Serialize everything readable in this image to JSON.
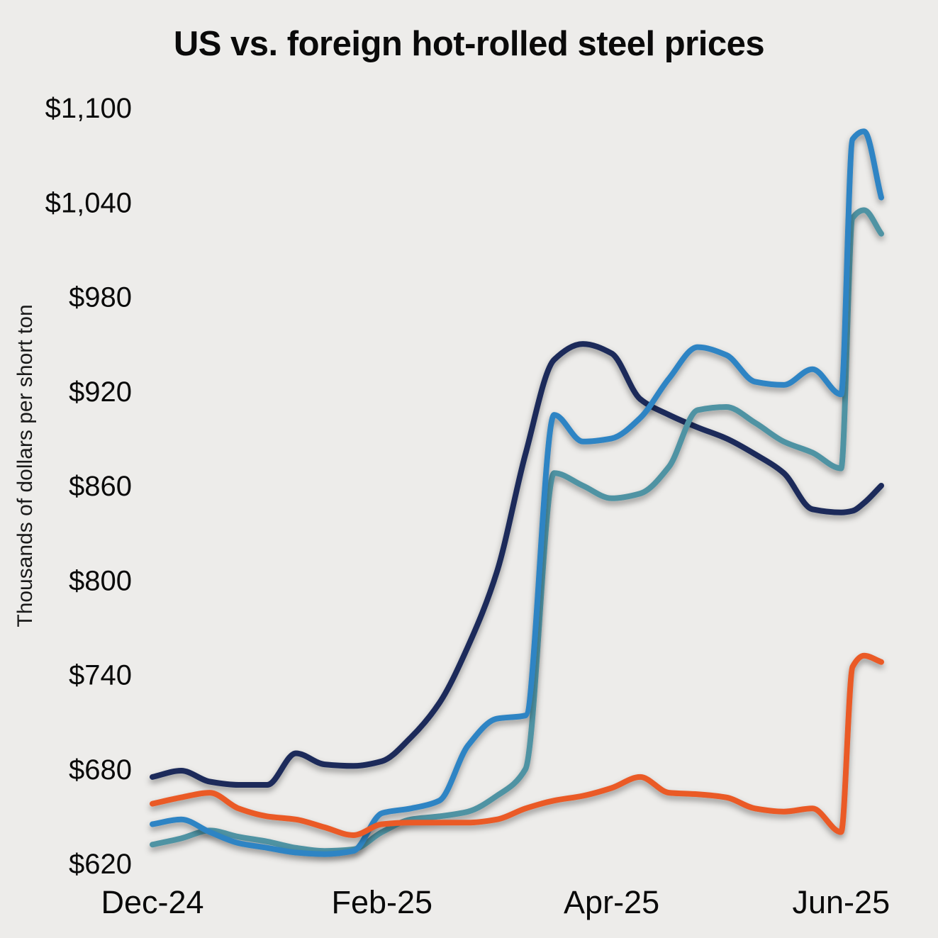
{
  "chart_data": {
    "type": "line",
    "title": "US vs. foreign hot-rolled steel prices",
    "ylabel": "Thousands of dollars per short ton",
    "xlabel": "",
    "background_color": "#edecea",
    "grid": false,
    "legend": "none",
    "ylim": [
      620,
      1100
    ],
    "xlim": [
      0,
      6.35
    ],
    "y_ticks": [
      620,
      680,
      740,
      800,
      860,
      920,
      980,
      1040,
      1100
    ],
    "y_tick_prefix": "$",
    "x_ticks": [
      {
        "label": "Dec-24",
        "x": 0
      },
      {
        "label": "Feb-25",
        "x": 2
      },
      {
        "label": "Apr-25",
        "x": 4
      },
      {
        "label": "Jun-25",
        "x": 6
      }
    ],
    "x": [
      0,
      0.25,
      0.5,
      0.75,
      1,
      1.25,
      1.5,
      1.75,
      2,
      2.25,
      2.5,
      2.75,
      3,
      3.25,
      3.5,
      3.75,
      4,
      4.25,
      4.5,
      4.75,
      5,
      5.25,
      5.5,
      5.75,
      6,
      6.1,
      6.2,
      6.35
    ],
    "series": [
      {
        "name": "navy-line",
        "color": "#1a2a5a",
        "values": [
          675,
          679,
          672,
          670,
          670,
          690,
          683,
          682,
          685,
          700,
          722,
          758,
          805,
          880,
          940,
          950,
          944,
          915,
          905,
          897,
          890,
          880,
          868,
          845,
          843,
          844,
          849,
          860
        ]
      },
      {
        "name": "teal-line",
        "color": "#4f93a3",
        "values": [
          632,
          636,
          641,
          637,
          634,
          630,
          628,
          629,
          640,
          648,
          650,
          653,
          663,
          680,
          868,
          860,
          852,
          855,
          872,
          908,
          910,
          900,
          888,
          881,
          871,
          1030,
          1035,
          1020
        ]
      },
      {
        "name": "blue-line",
        "color": "#2e84c4",
        "values": [
          645,
          648,
          640,
          633,
          630,
          627,
          626,
          628,
          652,
          655,
          660,
          695,
          712,
          714,
          905,
          888,
          890,
          903,
          928,
          948,
          943,
          926,
          924,
          934,
          918,
          1080,
          1085,
          1043
        ]
      },
      {
        "name": "orange-line",
        "color": "#ea5a28",
        "values": [
          658,
          662,
          665,
          655,
          650,
          648,
          643,
          638,
          645,
          646,
          646,
          646,
          648,
          655,
          660,
          663,
          668,
          675,
          665,
          664,
          662,
          655,
          653,
          655,
          640,
          745,
          752,
          748
        ]
      }
    ]
  }
}
